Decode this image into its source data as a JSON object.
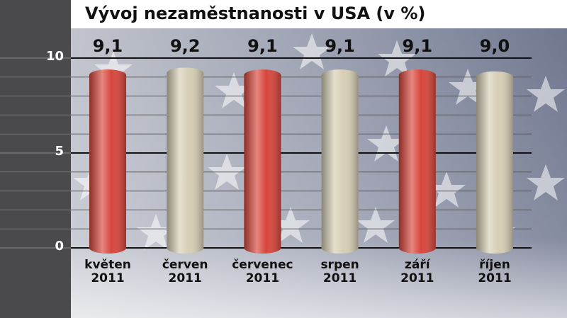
{
  "chart_data": {
    "type": "bar",
    "title": "Vývoj nezaměstnanosti v USA (v %)",
    "categories": [
      "květen\n2011",
      "červen\n2011",
      "červenec\n2011",
      "srpen\n2011",
      "září\n2011",
      "říjen\n2011"
    ],
    "values": [
      9.1,
      9.2,
      9.1,
      9.1,
      9.1,
      9.0
    ],
    "value_labels": [
      "9,1",
      "9,2",
      "9,1",
      "9,1",
      "9,1",
      "9,0"
    ],
    "colors": [
      "#d8463c",
      "#d6ceb4",
      "#d8463c",
      "#d6ceb4",
      "#d8463c",
      "#d6ceb4"
    ],
    "ylim": [
      0,
      10
    ],
    "yticks": [
      0,
      5,
      10
    ],
    "minor_gridlines": [
      1,
      2,
      3,
      4,
      6,
      7,
      8,
      9
    ],
    "grid": true
  }
}
